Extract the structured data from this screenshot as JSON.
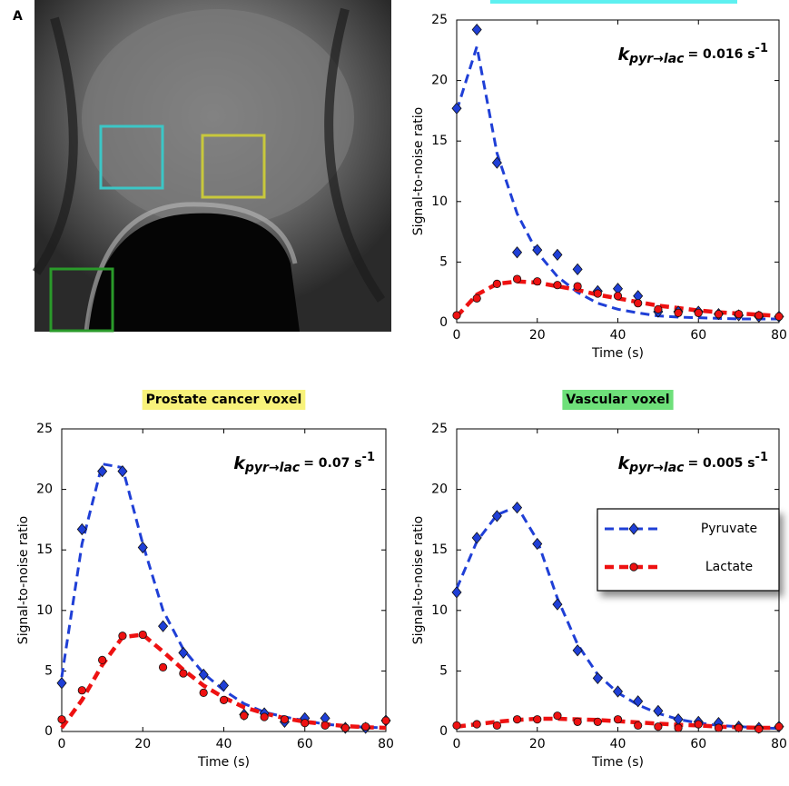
{
  "panel_label": "A",
  "chart_data": [
    {
      "type": "line",
      "annotation": {
        "symbol": "k",
        "subscript": "pyr→lac",
        "text": "= 0.016 s",
        "superscript": "-1"
      },
      "xlabel": "Time (s)",
      "ylabel": "Signal-to-noise ratio",
      "xlim": [
        0,
        80
      ],
      "xticks": [
        0,
        20,
        40,
        60,
        80
      ],
      "ylim": [
        0,
        25
      ],
      "yticks": [
        0,
        5,
        10,
        15,
        20,
        25
      ],
      "x": [
        0,
        5,
        10,
        15,
        20,
        25,
        30,
        35,
        40,
        45,
        50,
        55,
        60,
        65,
        70,
        75,
        80
      ],
      "series": [
        {
          "color": "#1f3fd6",
          "marker": "diamond",
          "values": [
            17.7,
            24.2,
            13.2,
            5.8,
            6.0,
            5.6,
            4.4,
            2.6,
            2.8,
            2.2,
            0.9,
            0.9,
            0.9,
            0.7,
            0.6,
            0.5,
            0.5
          ],
          "fit": [
            17.5,
            22.8,
            14.0,
            9.0,
            5.8,
            3.8,
            2.5,
            1.6,
            1.1,
            0.8,
            0.55,
            0.45,
            0.4,
            0.35,
            0.3,
            0.3,
            0.3
          ]
        },
        {
          "color": "#ee1111",
          "marker": "circle",
          "values": [
            0.6,
            2.0,
            3.2,
            3.6,
            3.4,
            3.1,
            3.0,
            2.4,
            2.2,
            1.6,
            1.1,
            0.8,
            0.8,
            0.7,
            0.7,
            0.6,
            0.5
          ],
          "fit": [
            0.5,
            2.3,
            3.2,
            3.4,
            3.3,
            3.0,
            2.7,
            2.3,
            2.0,
            1.7,
            1.4,
            1.2,
            1.0,
            0.85,
            0.75,
            0.65,
            0.55
          ]
        }
      ]
    },
    {
      "type": "line",
      "title": "Prostate cancer voxel",
      "title_color": "#f8f27a",
      "annotation": {
        "symbol": "k",
        "subscript": "pyr→lac",
        "text": "= 0.07 s",
        "superscript": "-1"
      },
      "xlabel": "Time (s)",
      "ylabel": "Signal-to-noise ratio",
      "xlim": [
        0,
        80
      ],
      "xticks": [
        0,
        20,
        40,
        60,
        80
      ],
      "ylim": [
        0,
        25
      ],
      "yticks": [
        0,
        5,
        10,
        15,
        20,
        25
      ],
      "x": [
        0,
        5,
        10,
        15,
        20,
        25,
        30,
        35,
        40,
        45,
        50,
        55,
        60,
        65,
        70,
        75,
        80
      ],
      "series": [
        {
          "color": "#1f3fd6",
          "marker": "diamond",
          "values": [
            4.0,
            16.7,
            21.5,
            21.5,
            15.2,
            8.7,
            6.5,
            4.7,
            3.8,
            1.4,
            1.5,
            0.8,
            1.1,
            1.1,
            0.3,
            0.3,
            0.9
          ],
          "fit": [
            4.5,
            15.5,
            22.1,
            21.8,
            15.5,
            10.0,
            6.8,
            4.8,
            3.4,
            2.3,
            1.6,
            1.2,
            0.9,
            0.6,
            0.45,
            0.35,
            0.3
          ]
        },
        {
          "color": "#ee1111",
          "marker": "circle",
          "values": [
            1.0,
            3.4,
            5.9,
            7.9,
            8.0,
            5.3,
            4.8,
            3.2,
            2.6,
            1.3,
            1.2,
            1.0,
            0.7,
            0.5,
            0.3,
            0.4,
            0.9
          ],
          "fit": [
            0.3,
            2.6,
            5.5,
            7.8,
            8.0,
            6.6,
            5.1,
            3.8,
            2.8,
            2.0,
            1.5,
            1.1,
            0.8,
            0.6,
            0.45,
            0.35,
            0.3
          ]
        }
      ]
    },
    {
      "type": "line",
      "title": "Vascular voxel",
      "title_color": "#6ee07a",
      "annotation": {
        "symbol": "k",
        "subscript": "pyr→lac",
        "text": "= 0.005 s",
        "superscript": "-1"
      },
      "xlabel": "Time (s)",
      "ylabel": "Signal-to-noise ratio",
      "xlim": [
        0,
        80
      ],
      "xticks": [
        0,
        20,
        40,
        60,
        80
      ],
      "ylim": [
        0,
        25
      ],
      "yticks": [
        0,
        5,
        10,
        15,
        20,
        25
      ],
      "legend": "right",
      "x": [
        0,
        5,
        10,
        15,
        20,
        25,
        30,
        35,
        40,
        45,
        50,
        55,
        60,
        65,
        70,
        75,
        80
      ],
      "series": [
        {
          "name": "Pyruvate",
          "color": "#1f3fd6",
          "marker": "diamond",
          "values": [
            11.5,
            16.0,
            17.8,
            18.5,
            15.5,
            10.5,
            6.7,
            4.4,
            3.3,
            2.5,
            1.7,
            1.0,
            0.8,
            0.7,
            0.4,
            0.3,
            0.4
          ],
          "fit": [
            11.8,
            15.7,
            17.9,
            18.6,
            15.8,
            11.0,
            7.2,
            4.7,
            3.2,
            2.2,
            1.5,
            1.0,
            0.7,
            0.5,
            0.4,
            0.3,
            0.25
          ]
        },
        {
          "name": "Lactate",
          "color": "#ee1111",
          "marker": "circle",
          "values": [
            0.5,
            0.6,
            0.5,
            1.0,
            1.0,
            1.3,
            0.8,
            0.8,
            1.0,
            0.5,
            0.4,
            0.3,
            0.6,
            0.3,
            0.3,
            0.2,
            0.4
          ],
          "fit": [
            0.4,
            0.6,
            0.8,
            0.95,
            1.05,
            1.05,
            1.0,
            0.95,
            0.85,
            0.75,
            0.65,
            0.55,
            0.5,
            0.4,
            0.35,
            0.3,
            0.3
          ]
        }
      ]
    }
  ]
}
